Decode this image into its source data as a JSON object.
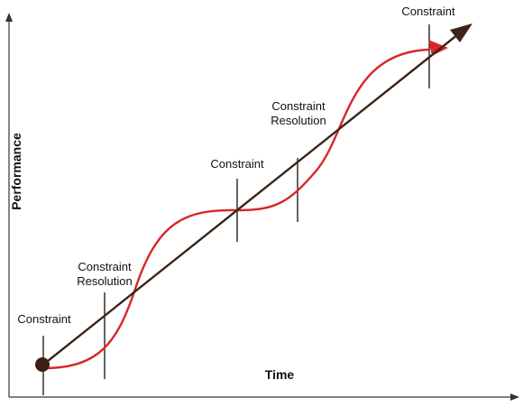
{
  "axes": {
    "x_title": "Time",
    "y_title": "Performance"
  },
  "labels": {
    "constraint_1": "Constraint",
    "resolution_1_line1": "Constraint",
    "resolution_1_line2": "Resolution",
    "constraint_2": "Constraint",
    "resolution_2_line1": "Constraint",
    "resolution_2_line2": "Resolution",
    "constraint_3": "Constraint"
  },
  "colors": {
    "axis": "#333333",
    "trend_arrow": "#3d2418",
    "performance_curve": "#d7262b",
    "marker": "#222222",
    "start_dot": "#3a1f14"
  }
}
